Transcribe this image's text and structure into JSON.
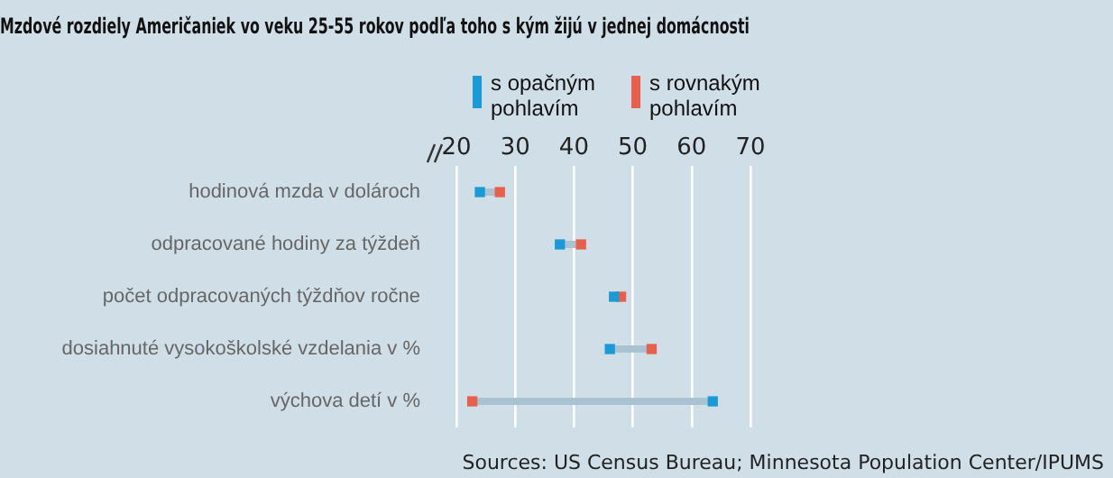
{
  "chart_data": {
    "type": "scatter",
    "title": "Mzdové rozdiely Američaniek vo veku 25-55 rokov podľa toho s kým žijú v jednej domácnosti",
    "orientation": "horizontal",
    "categories": [
      "hodinová mzda v dolároch",
      "odpracované hodiny za týždeň",
      "počet odpracovaných týždňov ročne",
      "dosiahnuté vysokoškolské vzdelania v %",
      "výchova detí v %"
    ],
    "series": [
      {
        "name": "s opačným pohlavím",
        "color": "#1a9ad6",
        "values": [
          24.0,
          37.6,
          46.8,
          46.1,
          63.6
        ]
      },
      {
        "name": "s rovnakým pohlavím",
        "color": "#e8604c",
        "values": [
          27.4,
          41.2,
          48.0,
          53.2,
          22.7
        ]
      }
    ],
    "xlim": [
      20,
      70
    ],
    "xticks": [
      20,
      30,
      40,
      50,
      60,
      70
    ],
    "grid": "x",
    "marker": "square",
    "legend": "top",
    "annotations": [
      "Sources: US Census Bureau; Minnesota Population Center/IPUMS"
    ]
  }
}
